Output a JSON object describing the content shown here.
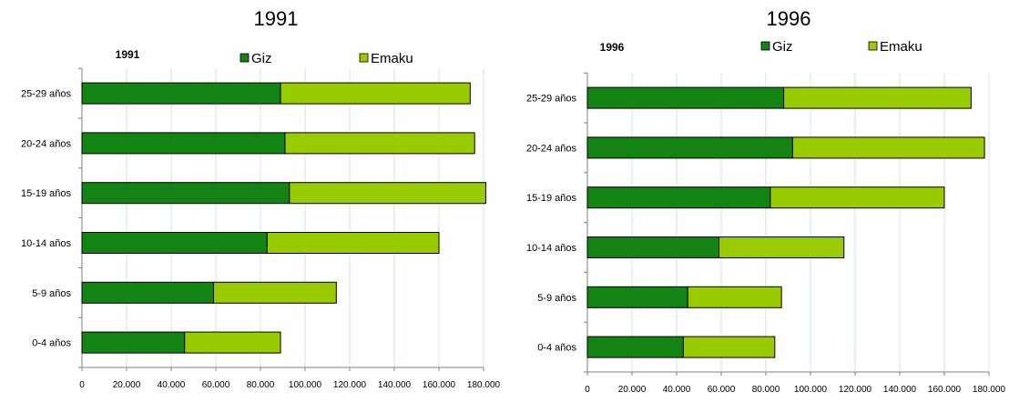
{
  "chart_data": [
    {
      "type": "bar",
      "orientation": "horizontal",
      "stacked": true,
      "title": "1991",
      "inner_title": "1991",
      "categories": [
        "0-4 años",
        "5-9 años",
        "10-14 años",
        "15-19 años",
        "20-24 años",
        "25-29 años"
      ],
      "series": [
        {
          "name": "Giz",
          "values": [
            46000,
            59000,
            83000,
            93000,
            91000,
            89000
          ]
        },
        {
          "name": "Emaku",
          "values": [
            43000,
            55000,
            77000,
            88000,
            85000,
            85000
          ]
        }
      ],
      "xlim": [
        0,
        180000
      ],
      "x_ticks": [
        "0",
        "20.000",
        "40.000",
        "60.000",
        "80.000",
        "100.000",
        "120.000",
        "140.000",
        "160.000",
        "180.000"
      ],
      "grid": true,
      "legend_position": "top"
    },
    {
      "type": "bar",
      "orientation": "horizontal",
      "stacked": true,
      "title": "1996",
      "inner_title": "1996",
      "categories": [
        "0-4 años",
        "5-9 años",
        "10-14 años",
        "15-19 años",
        "20-24 años",
        "25-29 años"
      ],
      "series": [
        {
          "name": "Giz",
          "values": [
            43000,
            45000,
            59000,
            82000,
            92000,
            88000
          ]
        },
        {
          "name": "Emaku",
          "values": [
            41000,
            42000,
            56000,
            78000,
            86000,
            84000
          ]
        }
      ],
      "xlim": [
        0,
        180000
      ],
      "x_ticks": [
        "0",
        "20.000",
        "40.000",
        "60.000",
        "80.000",
        "100.000",
        "120.000",
        "140.000",
        "160.000",
        "180.000"
      ],
      "grid": true,
      "legend_position": "top"
    }
  ],
  "colors": {
    "giz": "#138313",
    "emaku": "#99cc00",
    "grid": "#c8ecc8",
    "axis": "#808080",
    "border": "#000000"
  }
}
